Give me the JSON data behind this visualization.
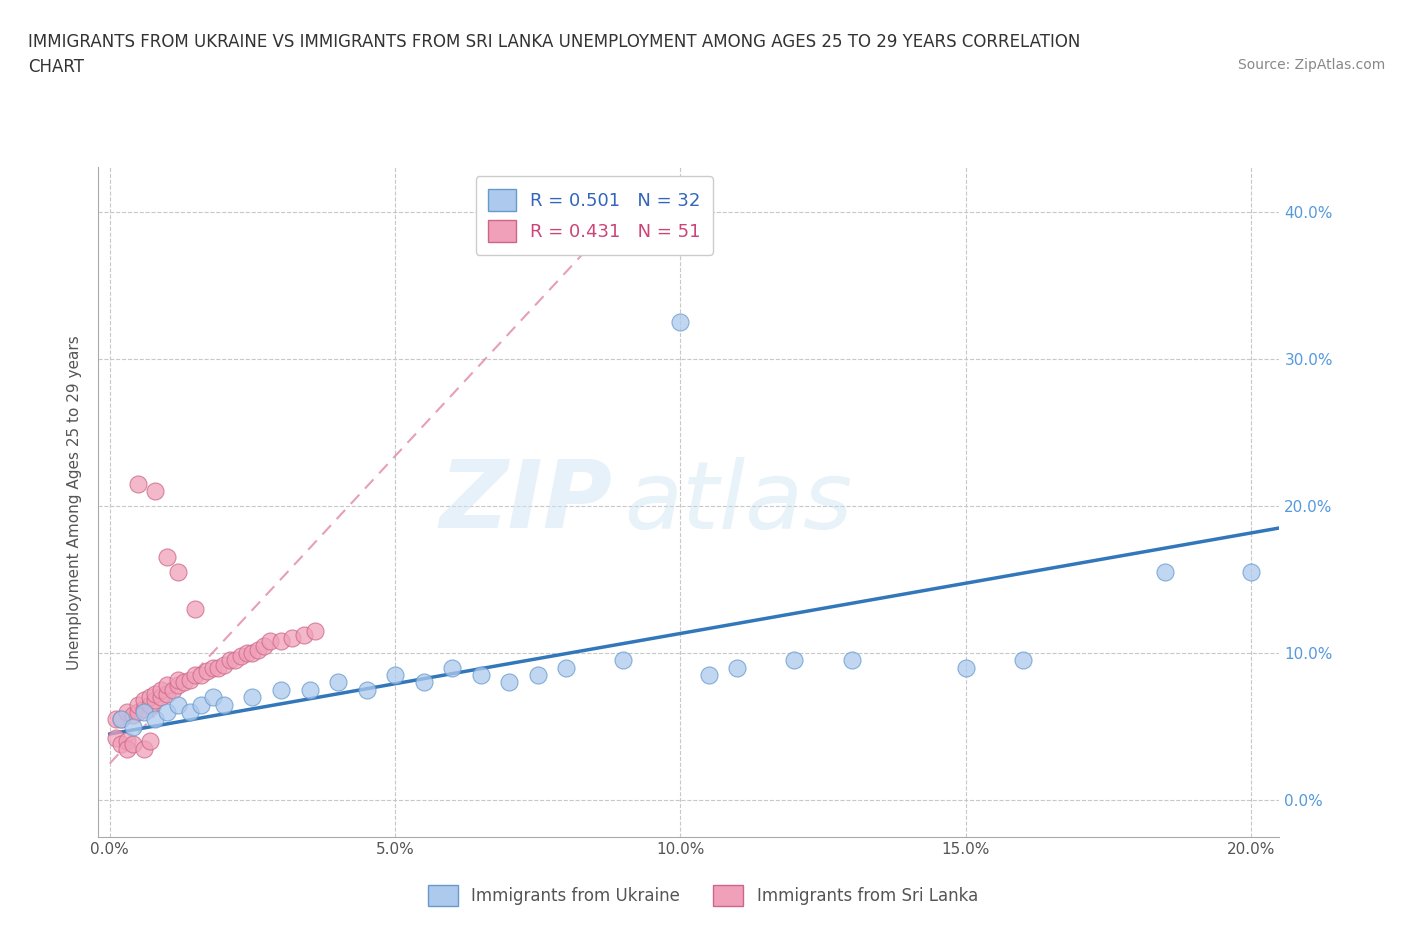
{
  "title_line1": "IMMIGRANTS FROM UKRAINE VS IMMIGRANTS FROM SRI LANKA UNEMPLOYMENT AMONG AGES 25 TO 29 YEARS CORRELATION",
  "title_line2": "CHART",
  "source_text": "Source: ZipAtlas.com",
  "ylabel": "Unemployment Among Ages 25 to 29 years",
  "xlim": [
    -0.002,
    0.205
  ],
  "ylim": [
    -0.025,
    0.43
  ],
  "xticks": [
    0.0,
    0.05,
    0.1,
    0.15,
    0.2
  ],
  "xticklabels": [
    "0.0%",
    "5.0%",
    "10.0%",
    "15.0%",
    "20.0%"
  ],
  "yticks": [
    0.0,
    0.1,
    0.2,
    0.3,
    0.4
  ],
  "yticklabels": [
    "0.0%",
    "10.0%",
    "20.0%",
    "30.0%",
    "40.0%"
  ],
  "ukraine_color": "#adc9ed",
  "ukraine_edge_color": "#6699cc",
  "srilanka_color": "#f0a0b8",
  "srilanka_edge_color": "#cc6688",
  "ukraine_line_color": "#3377bb",
  "srilanka_line_color": "#dd7799",
  "legend_ukraine_R": "0.501",
  "legend_ukraine_N": "32",
  "legend_srilanka_R": "0.431",
  "legend_srilanka_N": "51",
  "background_color": "#ffffff",
  "grid_color": "#c8c8c8",
  "ukraine_x": [
    0.002,
    0.004,
    0.006,
    0.008,
    0.01,
    0.012,
    0.014,
    0.016,
    0.018,
    0.02,
    0.025,
    0.03,
    0.035,
    0.04,
    0.045,
    0.05,
    0.055,
    0.06,
    0.065,
    0.07,
    0.075,
    0.08,
    0.09,
    0.1,
    0.105,
    0.11,
    0.12,
    0.13,
    0.15,
    0.16,
    0.185,
    0.2
  ],
  "ukraine_y": [
    0.055,
    0.05,
    0.06,
    0.055,
    0.06,
    0.065,
    0.06,
    0.065,
    0.07,
    0.065,
    0.07,
    0.075,
    0.075,
    0.08,
    0.075,
    0.085,
    0.08,
    0.09,
    0.085,
    0.08,
    0.085,
    0.09,
    0.095,
    0.325,
    0.085,
    0.09,
    0.095,
    0.095,
    0.09,
    0.095,
    0.155,
    0.155
  ],
  "srilanka_x": [
    0.001,
    0.002,
    0.003,
    0.004,
    0.005,
    0.005,
    0.006,
    0.006,
    0.007,
    0.007,
    0.008,
    0.008,
    0.009,
    0.009,
    0.01,
    0.01,
    0.011,
    0.012,
    0.012,
    0.013,
    0.014,
    0.015,
    0.016,
    0.017,
    0.018,
    0.019,
    0.02,
    0.021,
    0.022,
    0.023,
    0.024,
    0.025,
    0.026,
    0.027,
    0.028,
    0.03,
    0.032,
    0.034,
    0.036,
    0.005,
    0.008,
    0.01,
    0.012,
    0.001,
    0.002,
    0.003,
    0.003,
    0.004,
    0.006,
    0.007,
    0.015
  ],
  "srilanka_y": [
    0.055,
    0.055,
    0.06,
    0.058,
    0.06,
    0.065,
    0.062,
    0.068,
    0.065,
    0.07,
    0.068,
    0.072,
    0.07,
    0.075,
    0.072,
    0.078,
    0.075,
    0.078,
    0.082,
    0.08,
    0.082,
    0.085,
    0.085,
    0.088,
    0.09,
    0.09,
    0.092,
    0.095,
    0.095,
    0.098,
    0.1,
    0.1,
    0.102,
    0.105,
    0.108,
    0.108,
    0.11,
    0.112,
    0.115,
    0.215,
    0.21,
    0.165,
    0.155,
    0.042,
    0.038,
    0.04,
    0.035,
    0.038,
    0.035,
    0.04,
    0.13
  ],
  "ukraine_trend_x": [
    0.0,
    0.205
  ],
  "ukraine_trend_y": [
    0.045,
    0.185
  ],
  "srilanka_trend_x": [
    0.0,
    0.085
  ],
  "srilanka_trend_y": [
    0.025,
    0.38
  ]
}
